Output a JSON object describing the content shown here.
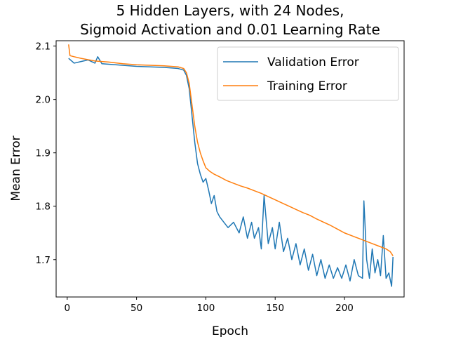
{
  "chart_data": {
    "type": "line",
    "title": [
      "5 Hidden Layers, with 24 Nodes,",
      "Sigmoid Activation and 0.01 Learning Rate"
    ],
    "xlabel": "Epoch",
    "ylabel": "Mean Error",
    "xlim": [
      -8,
      243
    ],
    "ylim": [
      1.63,
      2.11
    ],
    "xticks": [
      0,
      50,
      100,
      150,
      200
    ],
    "yticks": [
      1.7,
      1.8,
      1.9,
      2.0,
      2.1
    ],
    "grid": false,
    "legend_position": "upper right",
    "series": [
      {
        "name": "Validation Error",
        "color": "#1f77b4",
        "x": [
          1,
          5,
          10,
          15,
          20,
          22,
          25,
          30,
          40,
          50,
          60,
          70,
          80,
          84,
          86,
          88,
          90,
          92,
          94,
          96,
          98,
          100,
          102,
          104,
          106,
          108,
          110,
          113,
          116,
          120,
          124,
          127,
          130,
          133,
          135,
          138,
          140,
          142,
          145,
          148,
          150,
          153,
          156,
          159,
          162,
          165,
          168,
          171,
          174,
          177,
          180,
          183,
          186,
          189,
          192,
          195,
          198,
          201,
          204,
          207,
          210,
          213,
          214,
          216,
          218,
          220,
          222,
          224,
          226,
          228,
          230,
          232,
          234,
          235
        ],
        "y": [
          2.077,
          2.068,
          2.071,
          2.074,
          2.068,
          2.08,
          2.067,
          2.066,
          2.064,
          2.062,
          2.061,
          2.06,
          2.058,
          2.055,
          2.045,
          2.02,
          1.97,
          1.92,
          1.88,
          1.86,
          1.845,
          1.852,
          1.83,
          1.805,
          1.82,
          1.79,
          1.78,
          1.77,
          1.76,
          1.77,
          1.75,
          1.78,
          1.74,
          1.77,
          1.74,
          1.76,
          1.72,
          1.82,
          1.73,
          1.76,
          1.72,
          1.77,
          1.715,
          1.74,
          1.7,
          1.73,
          1.69,
          1.72,
          1.68,
          1.71,
          1.67,
          1.7,
          1.665,
          1.69,
          1.665,
          1.685,
          1.665,
          1.69,
          1.66,
          1.7,
          1.67,
          1.665,
          1.81,
          1.7,
          1.665,
          1.72,
          1.675,
          1.7,
          1.67,
          1.745,
          1.665,
          1.675,
          1.65,
          1.705
        ]
      },
      {
        "name": "Training Error",
        "color": "#ff7f0e",
        "x": [
          1,
          2,
          5,
          10,
          20,
          30,
          40,
          50,
          60,
          70,
          80,
          84,
          86,
          88,
          90,
          92,
          94,
          96,
          98,
          100,
          103,
          106,
          110,
          115,
          120,
          125,
          130,
          135,
          140,
          145,
          150,
          155,
          160,
          165,
          170,
          175,
          180,
          185,
          190,
          195,
          200,
          205,
          210,
          215,
          220,
          225,
          230,
          233,
          235
        ],
        "y": [
          2.103,
          2.082,
          2.08,
          2.077,
          2.072,
          2.07,
          2.067,
          2.065,
          2.064,
          2.063,
          2.061,
          2.058,
          2.05,
          2.03,
          1.99,
          1.95,
          1.92,
          1.9,
          1.885,
          1.872,
          1.865,
          1.86,
          1.855,
          1.848,
          1.843,
          1.838,
          1.834,
          1.829,
          1.824,
          1.818,
          1.812,
          1.806,
          1.8,
          1.794,
          1.788,
          1.783,
          1.776,
          1.77,
          1.764,
          1.757,
          1.75,
          1.745,
          1.74,
          1.735,
          1.73,
          1.725,
          1.72,
          1.715,
          1.707
        ]
      }
    ]
  }
}
